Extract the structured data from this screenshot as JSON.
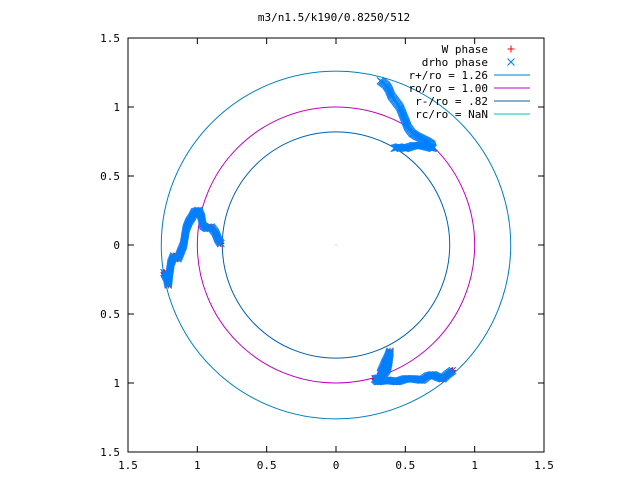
{
  "chart_data": {
    "type": "scatter",
    "title": "m3/n1.5/k190/0.8250/512",
    "xlabel": "",
    "ylabel": "",
    "xlim": [
      -1.5,
      1.5
    ],
    "ylim": [
      -1.5,
      1.5
    ],
    "x_ticks": [
      {
        "value": -1.5,
        "label": "1.5"
      },
      {
        "value": -1.0,
        "label": "1"
      },
      {
        "value": -0.5,
        "label": "0.5"
      },
      {
        "value": 0,
        "label": "0"
      },
      {
        "value": 0.5,
        "label": "0.5"
      },
      {
        "value": 1.0,
        "label": "1"
      },
      {
        "value": 1.5,
        "label": "1.5"
      }
    ],
    "y_ticks": [
      {
        "value": 1.5,
        "label": "1.5"
      },
      {
        "value": 1.0,
        "label": "1"
      },
      {
        "value": 0.5,
        "label": "0.5"
      },
      {
        "value": 0,
        "label": "0"
      },
      {
        "value": -0.5,
        "label": "0.5"
      },
      {
        "value": -1.0,
        "label": "1"
      },
      {
        "value": -1.5,
        "label": "1.5"
      }
    ],
    "legend_position": "top-right",
    "series": [
      {
        "name": "W phase",
        "kind": "points",
        "marker": "+",
        "color": "#ff0000",
        "points": [
          [
            -1.24,
            -0.2
          ],
          [
            -1.22,
            -0.24
          ],
          [
            -1.21,
            -0.29
          ],
          [
            -1.2,
            -0.2
          ],
          [
            -1.19,
            -0.13
          ],
          [
            -1.17,
            -0.08
          ],
          [
            -1.14,
            -0.1
          ],
          [
            -1.12,
            -0.05
          ],
          [
            -1.1,
            0.0
          ],
          [
            -1.09,
            0.06
          ],
          [
            -1.08,
            0.12
          ],
          [
            -1.06,
            0.17
          ],
          [
            -1.04,
            0.2
          ],
          [
            -1.02,
            0.24
          ],
          [
            -0.99,
            0.25
          ],
          [
            -0.97,
            0.2
          ],
          [
            -0.96,
            0.14
          ],
          [
            -0.93,
            0.12
          ],
          [
            -0.9,
            0.13
          ],
          [
            -0.87,
            0.09
          ],
          [
            -0.85,
            0.04
          ],
          [
            -0.83,
            0.01
          ],
          [
            0.32,
            -0.93
          ],
          [
            0.35,
            -0.86
          ],
          [
            0.37,
            -0.82
          ],
          [
            0.39,
            -0.77
          ],
          [
            0.38,
            -0.85
          ],
          [
            0.37,
            -0.9
          ],
          [
            0.33,
            -0.96
          ],
          [
            0.28,
            -0.97
          ],
          [
            0.3,
            -0.99
          ],
          [
            0.37,
            -0.98
          ],
          [
            0.44,
            -0.99
          ],
          [
            0.5,
            -0.97
          ],
          [
            0.56,
            -0.97
          ],
          [
            0.62,
            -0.98
          ],
          [
            0.66,
            -0.95
          ],
          [
            0.7,
            -0.94
          ],
          [
            0.74,
            -0.96
          ],
          [
            0.77,
            -0.97
          ],
          [
            0.8,
            -0.94
          ],
          [
            0.84,
            -0.91
          ]
        ]
      },
      {
        "name": "drho phase",
        "kind": "points",
        "marker": "x",
        "color": "#0080ff",
        "points": [
          [
            -1.24,
            -0.2
          ],
          [
            -1.22,
            -0.24
          ],
          [
            -1.21,
            -0.29
          ],
          [
            -1.2,
            -0.2
          ],
          [
            -1.19,
            -0.13
          ],
          [
            -1.17,
            -0.08
          ],
          [
            -1.14,
            -0.1
          ],
          [
            -1.12,
            -0.05
          ],
          [
            -1.1,
            0.0
          ],
          [
            -1.09,
            0.06
          ],
          [
            -1.08,
            0.12
          ],
          [
            -1.06,
            0.17
          ],
          [
            -1.04,
            0.2
          ],
          [
            -1.02,
            0.24
          ],
          [
            -0.99,
            0.25
          ],
          [
            -0.97,
            0.2
          ],
          [
            -0.96,
            0.14
          ],
          [
            -0.93,
            0.12
          ],
          [
            -0.9,
            0.13
          ],
          [
            -0.87,
            0.09
          ],
          [
            -0.85,
            0.04
          ],
          [
            -0.83,
            0.01
          ],
          [
            0.32,
            1.19
          ],
          [
            0.36,
            1.16
          ],
          [
            0.38,
            1.13
          ],
          [
            0.4,
            1.08
          ],
          [
            0.43,
            1.04
          ],
          [
            0.46,
            1.0
          ],
          [
            0.48,
            0.95
          ],
          [
            0.5,
            0.9
          ],
          [
            0.52,
            0.85
          ],
          [
            0.55,
            0.81
          ],
          [
            0.58,
            0.79
          ],
          [
            0.62,
            0.77
          ],
          [
            0.66,
            0.75
          ],
          [
            0.69,
            0.73
          ],
          [
            0.7,
            0.7
          ],
          [
            0.62,
            0.72
          ],
          [
            0.56,
            0.72
          ],
          [
            0.5,
            0.7
          ],
          [
            0.45,
            0.71
          ],
          [
            0.42,
            0.7
          ],
          [
            0.32,
            -0.93
          ],
          [
            0.35,
            -0.86
          ],
          [
            0.37,
            -0.82
          ],
          [
            0.39,
            -0.77
          ],
          [
            0.38,
            -0.85
          ],
          [
            0.37,
            -0.9
          ],
          [
            0.33,
            -0.96
          ],
          [
            0.28,
            -0.97
          ],
          [
            0.3,
            -0.99
          ],
          [
            0.37,
            -0.98
          ],
          [
            0.44,
            -0.99
          ],
          [
            0.5,
            -0.97
          ],
          [
            0.56,
            -0.97
          ],
          [
            0.62,
            -0.98
          ],
          [
            0.66,
            -0.95
          ],
          [
            0.7,
            -0.94
          ],
          [
            0.74,
            -0.96
          ],
          [
            0.77,
            -0.97
          ],
          [
            0.8,
            -0.94
          ],
          [
            0.84,
            -0.91
          ]
        ]
      },
      {
        "name": "r+/ro = 1.26",
        "kind": "circle",
        "radius": 1.26,
        "color": "#0080c0"
      },
      {
        "name": "ro/ro = 1.00",
        "kind": "circle",
        "radius": 1.0,
        "color": "#c000c0"
      },
      {
        "name": "r-/ro = .82",
        "kind": "circle",
        "radius": 0.82,
        "color": "#0060b0"
      },
      {
        "name": "rc/ro = NaN",
        "kind": "circle",
        "radius": null,
        "color": "#00c0c0"
      }
    ]
  }
}
